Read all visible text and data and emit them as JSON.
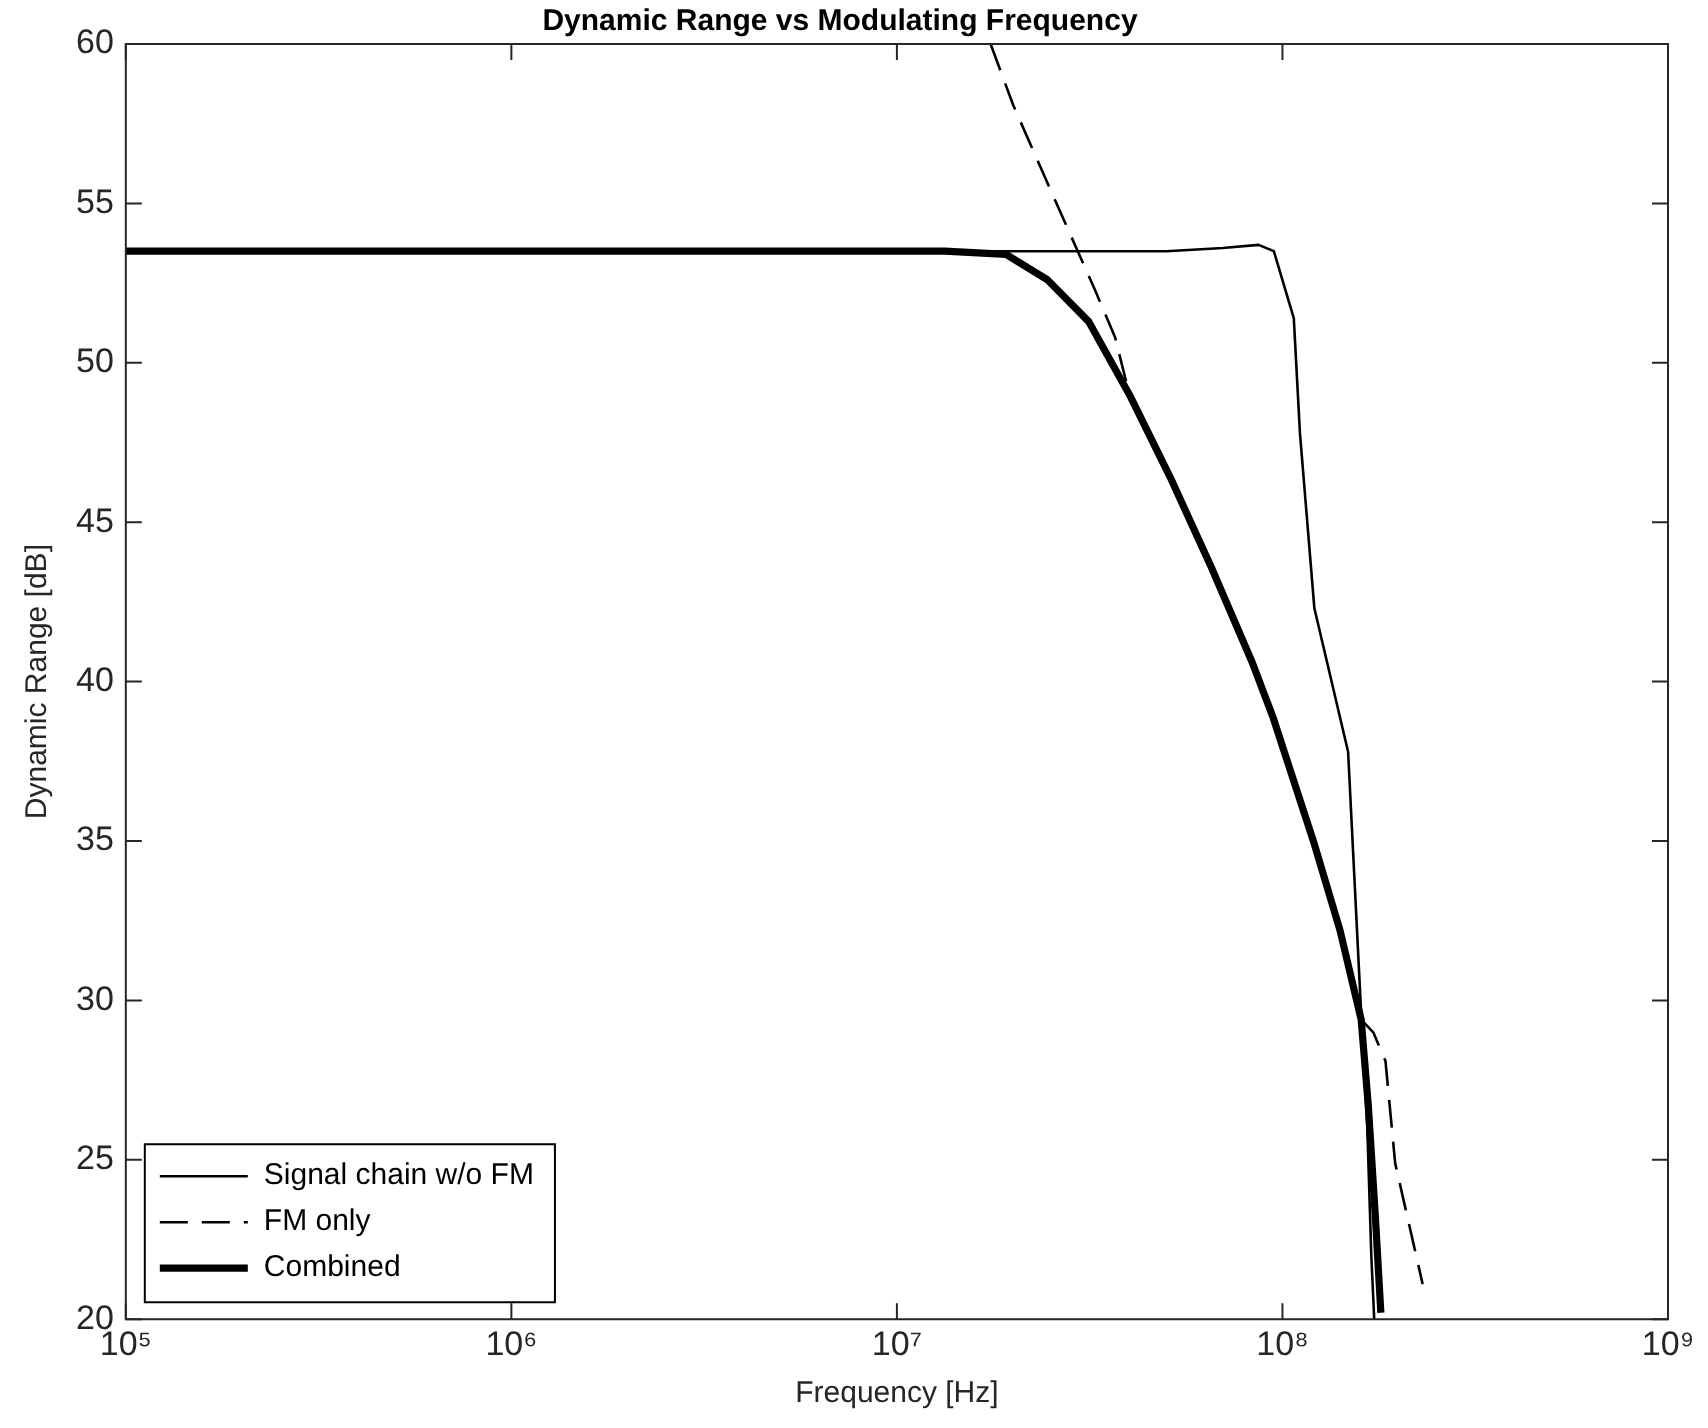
{
  "chart_data": {
    "type": "line",
    "title": "Dynamic Range vs Modulating Frequency",
    "xlabel": "Frequency [Hz]",
    "ylabel": "Dynamic Range [dB]",
    "log": "x",
    "xlim": [
      100000,
      1000000000
    ],
    "ylim": [
      20,
      60
    ],
    "xticks": [
      {
        "value": 100000,
        "label": "10⁵"
      },
      {
        "value": 1000000,
        "label": "10⁶"
      },
      {
        "value": 10000000,
        "label": "10⁷"
      },
      {
        "value": 100000000,
        "label": "10⁸"
      },
      {
        "value": 1000000000,
        "label": "10⁹"
      }
    ],
    "yticks": [
      20,
      25,
      30,
      35,
      40,
      45,
      50,
      55,
      60
    ],
    "grid": false,
    "legend": "bottom left",
    "marker": "none",
    "series": [
      {
        "name": "Signal chain w/o FM",
        "color": "#000000",
        "line_style": "solid",
        "x": [
          100000,
          1000000,
          10000000,
          30000000,
          50000000,
          70000000,
          86700000,
          95000000,
          107000000,
          111000000,
          121000000,
          148000000,
          160000000,
          166000000,
          170000000,
          173000000
        ],
        "values": [
          53.5,
          53.5,
          53.5,
          53.5,
          53.5,
          53.6,
          53.7,
          53.5,
          51.4,
          47.8,
          42.3,
          37.8,
          29.6,
          26,
          22,
          20
        ]
      },
      {
        "name": "FM only",
        "color": "#000000",
        "line_style": "dashed",
        "x": [
          17500000,
          20000000,
          25500000,
          32600000,
          36800000,
          40100000,
          51200000,
          65300000,
          83500000,
          94400000,
          121000000,
          141000000,
          160000000,
          172000000,
          185000000,
          196000000,
          231000000
        ],
        "values": [
          60,
          58.1,
          55.2,
          52.3,
          50.8,
          49.0,
          46.4,
          43.6,
          40.6,
          38.9,
          34.9,
          32.2,
          29.4,
          29.0,
          28.1,
          24.9,
          21.1
        ]
      },
      {
        "name": "Combined",
        "color": "#000000",
        "line_style": "solid",
        "x": [
          100000,
          1000000,
          10000000,
          13300000,
          19200000,
          24600000,
          31400000,
          40100000,
          51200000,
          65300000,
          83500000,
          94400000,
          121000000,
          141000000,
          160000000,
          167000000,
          174000000,
          180000000
        ],
        "values": [
          53.5,
          53.5,
          53.5,
          53.5,
          53.4,
          52.6,
          51.3,
          49.0,
          46.4,
          43.6,
          40.6,
          38.9,
          34.9,
          32.2,
          29.4,
          26.7,
          23.3,
          20.2
        ]
      }
    ]
  }
}
